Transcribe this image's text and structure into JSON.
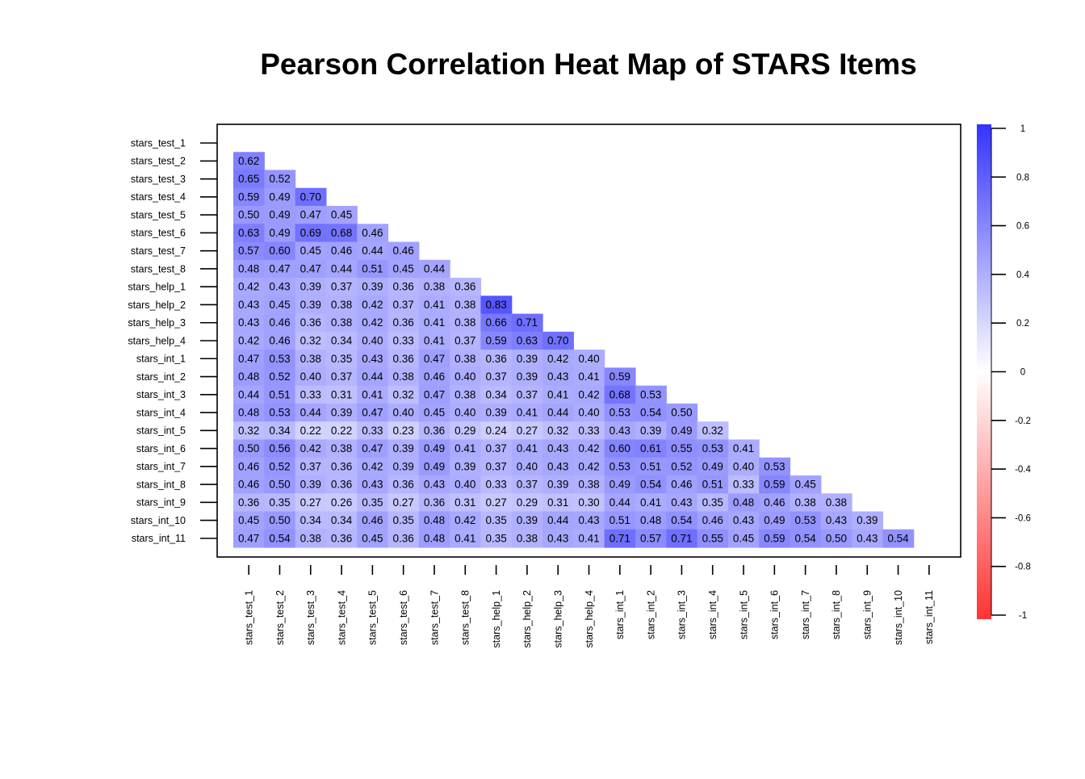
{
  "chart_data": {
    "type": "heatmap",
    "title": "Pearson Correlation Heat Map of STARS Items",
    "layout": "lower-triangle",
    "variables": [
      "stars_test_1",
      "stars_test_2",
      "stars_test_3",
      "stars_test_4",
      "stars_test_5",
      "stars_test_6",
      "stars_test_7",
      "stars_test_8",
      "stars_help_1",
      "stars_help_2",
      "stars_help_3",
      "stars_help_4",
      "stars_int_1",
      "stars_int_2",
      "stars_int_3",
      "stars_int_4",
      "stars_int_5",
      "stars_int_6",
      "stars_int_7",
      "stars_int_8",
      "stars_int_9",
      "stars_int_10",
      "stars_int_11"
    ],
    "values": [
      [],
      [
        0.62
      ],
      [
        0.65,
        0.52
      ],
      [
        0.59,
        0.49,
        0.7
      ],
      [
        0.5,
        0.49,
        0.47,
        0.45
      ],
      [
        0.63,
        0.49,
        0.69,
        0.68,
        0.46
      ],
      [
        0.57,
        0.6,
        0.45,
        0.46,
        0.44,
        0.46
      ],
      [
        0.48,
        0.47,
        0.47,
        0.44,
        0.51,
        0.45,
        0.44
      ],
      [
        0.42,
        0.43,
        0.39,
        0.37,
        0.39,
        0.36,
        0.38,
        0.36
      ],
      [
        0.43,
        0.45,
        0.39,
        0.38,
        0.42,
        0.37,
        0.41,
        0.38,
        0.83
      ],
      [
        0.43,
        0.46,
        0.36,
        0.38,
        0.42,
        0.36,
        0.41,
        0.38,
        0.66,
        0.71
      ],
      [
        0.42,
        0.46,
        0.32,
        0.34,
        0.4,
        0.33,
        0.41,
        0.37,
        0.59,
        0.63,
        0.7
      ],
      [
        0.47,
        0.53,
        0.38,
        0.35,
        0.43,
        0.36,
        0.47,
        0.38,
        0.36,
        0.39,
        0.42,
        0.4
      ],
      [
        0.48,
        0.52,
        0.4,
        0.37,
        0.44,
        0.38,
        0.46,
        0.4,
        0.37,
        0.39,
        0.43,
        0.41,
        0.59
      ],
      [
        0.44,
        0.51,
        0.33,
        0.31,
        0.41,
        0.32,
        0.47,
        0.38,
        0.34,
        0.37,
        0.41,
        0.42,
        0.68,
        0.53
      ],
      [
        0.48,
        0.53,
        0.44,
        0.39,
        0.47,
        0.4,
        0.45,
        0.4,
        0.39,
        0.41,
        0.44,
        0.4,
        0.53,
        0.54,
        0.5
      ],
      [
        0.32,
        0.34,
        0.22,
        0.22,
        0.33,
        0.23,
        0.36,
        0.29,
        0.24,
        0.27,
        0.32,
        0.33,
        0.43,
        0.39,
        0.49,
        0.32
      ],
      [
        0.5,
        0.56,
        0.42,
        0.38,
        0.47,
        0.39,
        0.49,
        0.41,
        0.37,
        0.41,
        0.43,
        0.42,
        0.6,
        0.61,
        0.55,
        0.53,
        0.41
      ],
      [
        0.46,
        0.52,
        0.37,
        0.36,
        0.42,
        0.39,
        0.49,
        0.39,
        0.37,
        0.4,
        0.43,
        0.42,
        0.53,
        0.51,
        0.52,
        0.49,
        0.4,
        0.53
      ],
      [
        0.46,
        0.5,
        0.39,
        0.36,
        0.43,
        0.36,
        0.43,
        0.4,
        0.33,
        0.37,
        0.39,
        0.38,
        0.49,
        0.54,
        0.46,
        0.51,
        0.33,
        0.59,
        0.45
      ],
      [
        0.36,
        0.35,
        0.27,
        0.26,
        0.35,
        0.27,
        0.36,
        0.31,
        0.27,
        0.29,
        0.31,
        0.3,
        0.44,
        0.41,
        0.43,
        0.35,
        0.48,
        0.46,
        0.38,
        0.38
      ],
      [
        0.45,
        0.5,
        0.34,
        0.34,
        0.46,
        0.35,
        0.48,
        0.42,
        0.35,
        0.39,
        0.44,
        0.43,
        0.51,
        0.48,
        0.54,
        0.46,
        0.43,
        0.49,
        0.53,
        0.43,
        0.39
      ],
      [
        0.47,
        0.54,
        0.38,
        0.36,
        0.45,
        0.36,
        0.48,
        0.41,
        0.35,
        0.38,
        0.43,
        0.41,
        0.71,
        0.57,
        0.71,
        0.55,
        0.45,
        0.59,
        0.54,
        0.5,
        0.43,
        0.54
      ]
    ],
    "color_scale": {
      "range": [
        -1,
        1
      ],
      "low_color": "#FF3333",
      "mid_color": "#FFFFFF",
      "high_color": "#3333FF",
      "ticks": [
        1,
        0.8,
        0.6,
        0.4,
        0.2,
        0,
        -0.2,
        -0.4,
        -0.6,
        -0.8,
        -1
      ],
      "tick_labels": [
        "1",
        "0.8",
        "0.6",
        "0.4",
        "0.2",
        "0",
        "-0.2",
        "-0.4",
        "-0.6",
        "-0.8",
        "-1"
      ]
    },
    "value_format": "2 decimals",
    "grid": false,
    "legend": "right"
  }
}
